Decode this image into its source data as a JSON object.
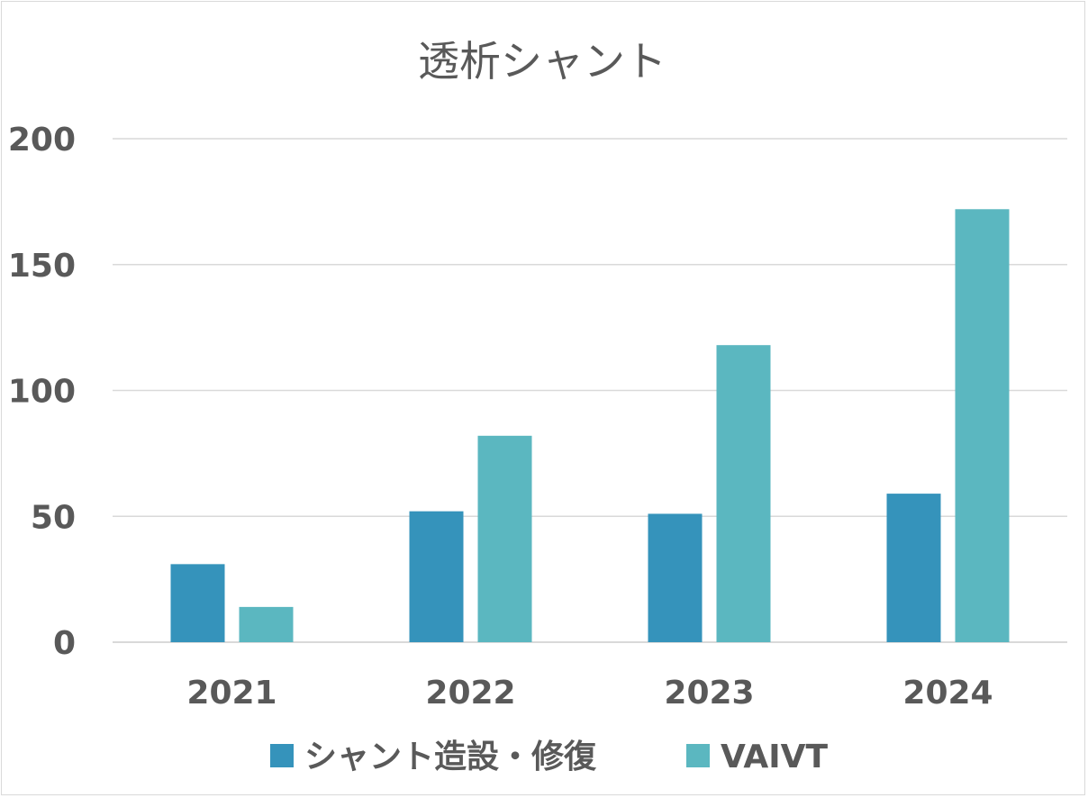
{
  "chart_data": {
    "type": "bar",
    "title": "透析シャント",
    "categories": [
      "2021",
      "2022",
      "2023",
      "2024"
    ],
    "series": [
      {
        "name": "シャント造設・修復",
        "values": [
          31,
          52,
          51,
          59
        ],
        "color": "#3593BB"
      },
      {
        "name": "VAIVT",
        "values": [
          14,
          82,
          118,
          172
        ],
        "color": "#5BB7C0"
      }
    ],
    "yticks": [
      0,
      50,
      100,
      150,
      200
    ],
    "ylim": [
      0,
      200
    ],
    "grid": true,
    "legend_position": "bottom"
  }
}
